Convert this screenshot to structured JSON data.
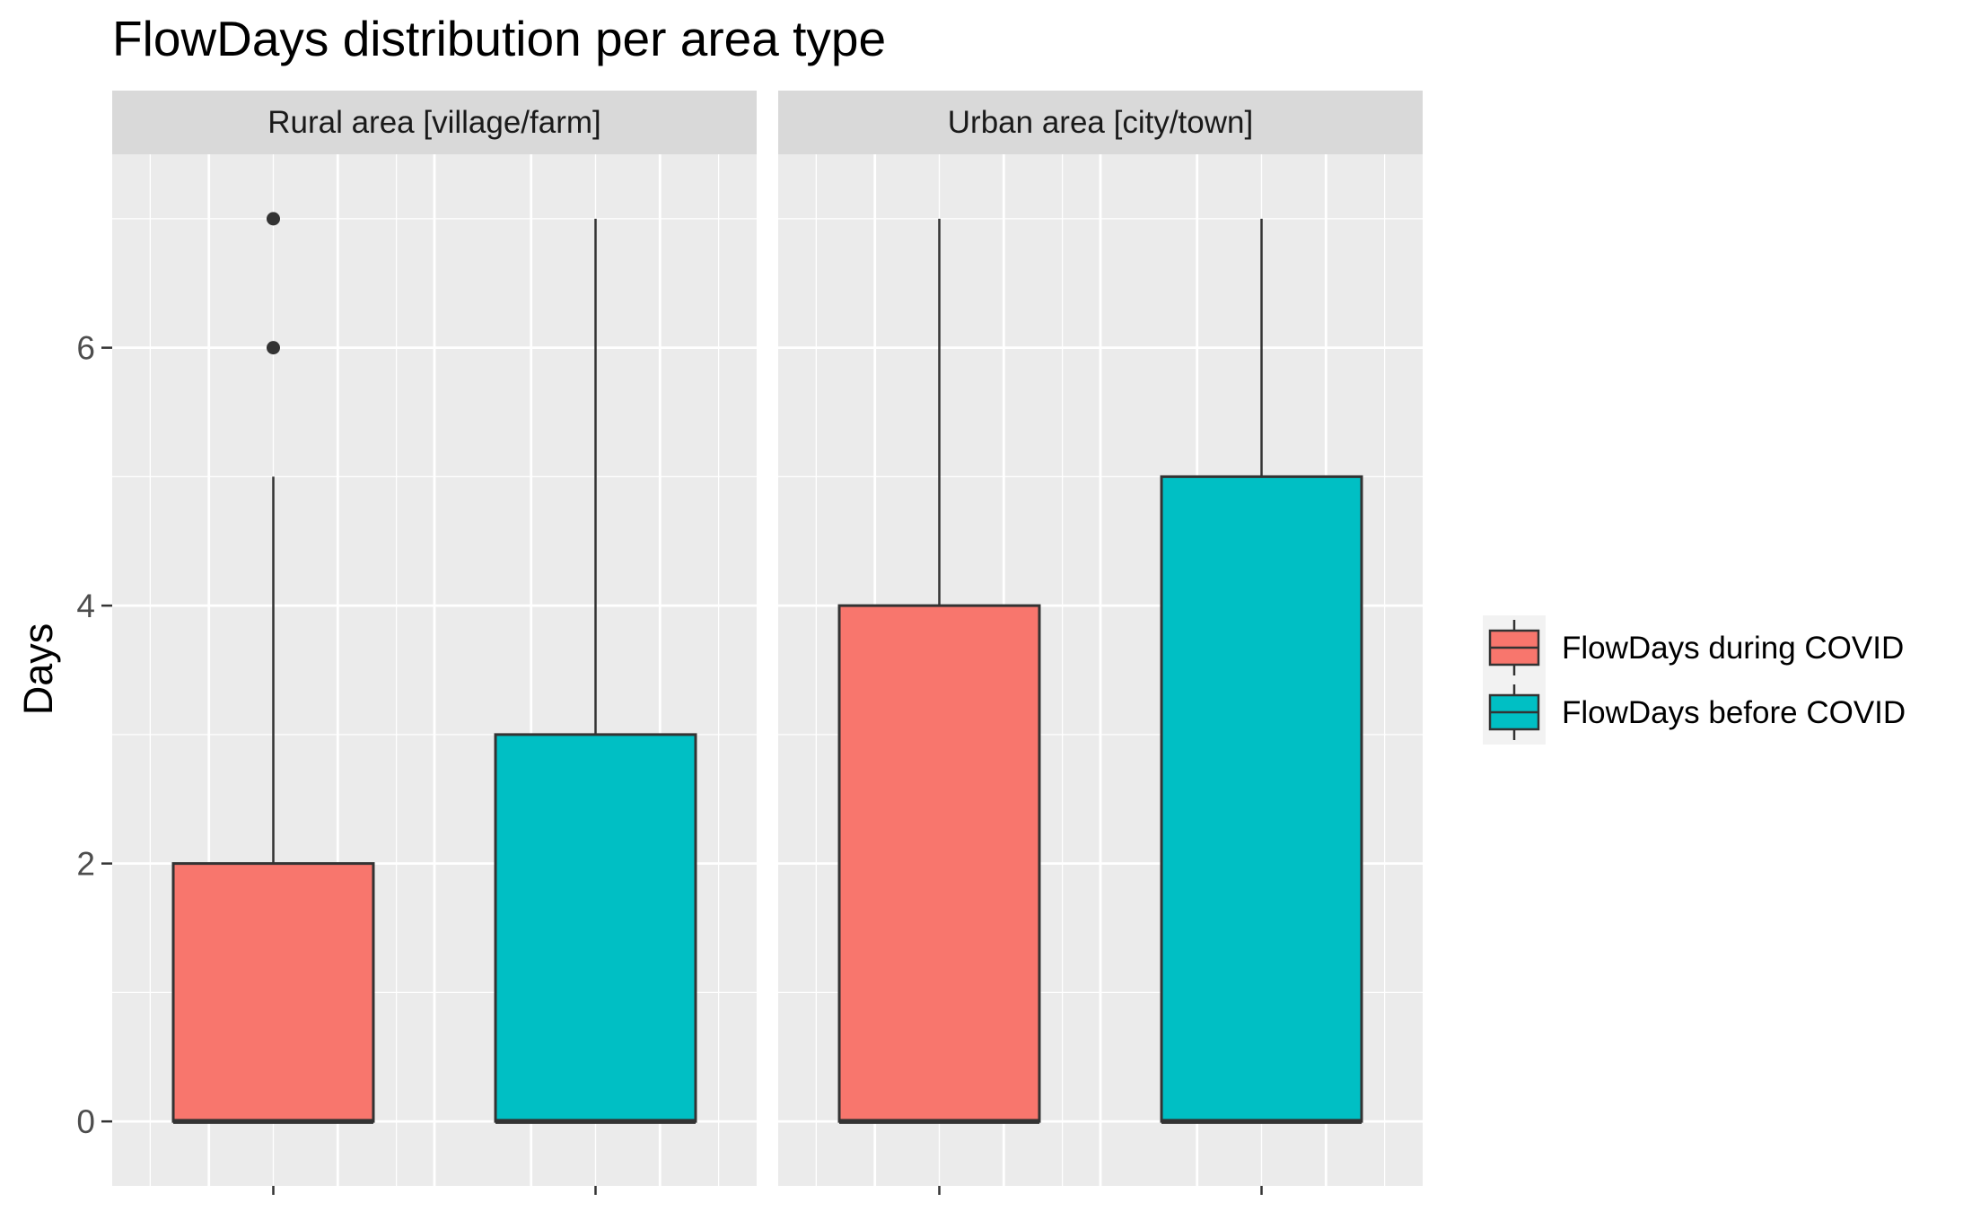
{
  "chart_data": {
    "type": "boxplot",
    "title": "FlowDays distribution per area type",
    "xlabel": "",
    "ylabel": "Days",
    "ylim": [
      -0.5,
      7.5
    ],
    "y_ticks": [
      0,
      2,
      4,
      6
    ],
    "grid": true,
    "legend_position": "right",
    "series": [
      {
        "name": "FlowDays during COVID",
        "color": "#F8766D"
      },
      {
        "name": "FlowDays before COVID",
        "color": "#00BFC4"
      }
    ],
    "facets": [
      {
        "label": "Rural area [village/farm]",
        "boxes": [
          {
            "series": "FlowDays during COVID",
            "q1": 0,
            "median": 0,
            "q3": 2,
            "whisker_low": 0,
            "whisker_high": 5,
            "outliers": [
              6,
              7
            ]
          },
          {
            "series": "FlowDays before COVID",
            "q1": 0,
            "median": 0,
            "q3": 3,
            "whisker_low": 0,
            "whisker_high": 7,
            "outliers": []
          }
        ]
      },
      {
        "label": "Urban area [city/town]",
        "boxes": [
          {
            "series": "FlowDays during COVID",
            "q1": 0,
            "median": 0,
            "q3": 4,
            "whisker_low": 0,
            "whisker_high": 7,
            "outliers": []
          },
          {
            "series": "FlowDays before COVID",
            "q1": 0,
            "median": 0,
            "q3": 5,
            "whisker_low": 0,
            "whisker_high": 7,
            "outliers": []
          }
        ]
      }
    ]
  }
}
